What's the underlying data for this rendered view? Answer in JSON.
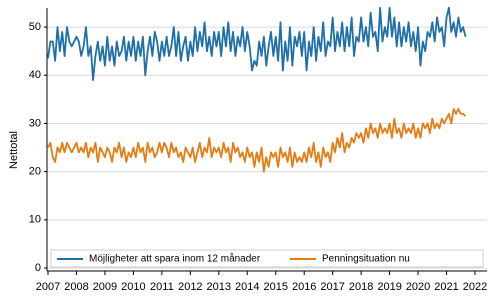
{
  "chart_data": {
    "type": "line",
    "y_label": "Nettotal",
    "x": [
      2007,
      2007.083,
      2007.167,
      2007.25,
      2007.333,
      2007.417,
      2007.5,
      2007.583,
      2007.667,
      2007.75,
      2007.833,
      2007.917,
      2008,
      2008.083,
      2008.167,
      2008.25,
      2008.333,
      2008.417,
      2008.5,
      2008.583,
      2008.667,
      2008.75,
      2008.833,
      2008.917,
      2009,
      2009.083,
      2009.167,
      2009.25,
      2009.333,
      2009.417,
      2009.5,
      2009.583,
      2009.667,
      2009.75,
      2009.833,
      2009.917,
      2010,
      2010.083,
      2010.167,
      2010.25,
      2010.333,
      2010.417,
      2010.5,
      2010.583,
      2010.667,
      2010.75,
      2010.833,
      2010.917,
      2011,
      2011.083,
      2011.167,
      2011.25,
      2011.333,
      2011.417,
      2011.5,
      2011.583,
      2011.667,
      2011.75,
      2011.833,
      2011.917,
      2012,
      2012.083,
      2012.167,
      2012.25,
      2012.333,
      2012.417,
      2012.5,
      2012.583,
      2012.667,
      2012.75,
      2012.833,
      2012.917,
      2013,
      2013.083,
      2013.167,
      2013.25,
      2013.333,
      2013.417,
      2013.5,
      2013.583,
      2013.667,
      2013.75,
      2013.833,
      2013.917,
      2014,
      2014.083,
      2014.167,
      2014.25,
      2014.333,
      2014.417,
      2014.5,
      2014.583,
      2014.667,
      2014.75,
      2014.833,
      2014.917,
      2015,
      2015.083,
      2015.167,
      2015.25,
      2015.333,
      2015.417,
      2015.5,
      2015.583,
      2015.667,
      2015.75,
      2015.833,
      2015.917,
      2016,
      2016.083,
      2016.167,
      2016.25,
      2016.333,
      2016.417,
      2016.5,
      2016.583,
      2016.667,
      2016.75,
      2016.833,
      2016.917,
      2017,
      2017.083,
      2017.167,
      2017.25,
      2017.333,
      2017.417,
      2017.5,
      2017.583,
      2017.667,
      2017.75,
      2017.833,
      2017.917,
      2018,
      2018.083,
      2018.167,
      2018.25,
      2018.333,
      2018.417,
      2018.5,
      2018.583,
      2018.667,
      2018.75,
      2018.833,
      2018.917,
      2019,
      2019.083,
      2019.167,
      2019.25,
      2019.333,
      2019.417,
      2019.5,
      2019.583,
      2019.667,
      2019.75,
      2019.833,
      2019.917,
      2020,
      2020.083,
      2020.167,
      2020.25,
      2020.333,
      2020.417,
      2020.5,
      2020.583,
      2020.667,
      2020.75,
      2020.833,
      2020.917,
      2021,
      2021.083,
      2021.167,
      2021.25,
      2021.333,
      2021.417,
      2021.5,
      2021.583,
      2021.667
    ],
    "series": [
      {
        "name": "Möjligheter att spara inom 12 månader",
        "color": "#1f6fa8",
        "values": [
          43.5,
          47,
          47,
          43,
          50,
          45,
          49,
          44,
          50,
          47,
          46,
          47,
          48,
          47,
          44,
          46,
          50,
          44,
          46,
          39,
          44,
          47,
          43,
          46,
          42,
          48,
          43,
          46,
          42,
          47,
          44,
          45,
          48,
          43,
          47,
          44,
          48,
          43,
          47,
          44,
          48,
          40,
          45,
          48,
          44,
          49,
          47,
          43,
          47,
          44,
          48,
          44,
          46,
          50,
          44,
          49,
          43,
          46,
          48,
          43,
          47,
          44,
          50,
          45,
          49,
          46,
          51,
          45,
          48,
          44,
          49,
          46,
          49,
          44,
          50,
          46,
          51,
          45,
          49,
          44,
          48,
          46,
          50,
          45,
          49,
          46,
          41,
          43,
          42,
          47,
          44,
          48,
          42,
          46,
          49,
          44,
          48,
          43,
          51,
          41,
          47,
          43,
          50,
          42,
          48,
          46,
          49,
          44,
          49,
          41,
          47,
          44,
          50,
          43,
          48,
          45,
          51,
          44,
          47,
          46,
          52,
          45,
          49,
          46,
          51,
          45,
          50,
          46,
          52,
          44,
          48,
          47,
          52,
          47,
          50,
          46,
          53,
          48,
          49,
          45,
          54,
          47,
          50,
          48,
          54,
          48,
          52,
          46,
          51,
          46,
          50,
          47,
          51,
          46,
          49,
          45,
          50,
          42,
          47,
          45,
          49,
          48,
          51,
          47,
          52,
          49,
          50,
          46,
          52,
          54,
          49,
          51,
          48,
          52,
          49,
          50,
          48
        ]
      },
      {
        "name": "Penningsituation nu",
        "color": "#e57c14",
        "values": [
          25,
          26,
          23,
          22,
          25,
          24,
          26,
          24,
          26,
          25,
          24,
          25,
          26,
          24,
          25,
          24,
          26,
          23,
          25,
          24,
          26,
          22,
          25,
          24,
          23,
          25,
          24,
          22,
          25,
          24,
          26,
          23,
          25,
          22,
          24,
          23,
          25,
          23,
          26,
          24,
          25,
          22,
          26,
          24,
          25,
          23,
          24,
          26,
          24,
          26,
          25,
          23,
          26,
          24,
          25,
          23,
          24,
          22,
          25,
          24,
          23,
          25,
          22,
          24,
          26,
          23,
          25,
          24,
          27,
          23,
          25,
          24,
          25,
          23,
          26,
          24,
          25,
          22,
          26,
          24,
          25,
          23,
          24,
          22,
          25,
          23,
          24,
          21,
          24,
          22,
          25,
          20,
          23,
          21,
          24,
          23,
          24,
          21,
          25,
          23,
          24,
          22,
          25,
          21,
          24,
          22,
          23,
          22,
          24,
          22,
          25,
          23,
          26,
          22,
          24,
          21,
          25,
          23,
          24,
          22,
          26,
          24,
          27,
          25,
          28,
          24,
          26,
          25,
          27,
          26,
          28,
          27,
          28,
          26,
          29,
          27,
          30,
          28,
          29,
          27,
          30,
          28,
          29,
          28,
          30,
          27,
          31,
          28,
          29,
          27,
          30,
          28,
          29,
          28,
          30,
          27,
          29,
          27,
          30,
          29,
          30,
          28,
          31,
          29,
          30,
          29,
          31,
          30,
          31,
          32,
          30,
          33,
          32,
          33,
          32,
          32,
          31.5
        ]
      }
    ],
    "xlim": [
      2007,
      2022
    ],
    "xticks": [
      2007,
      2008,
      2009,
      2010,
      2011,
      2012,
      2013,
      2014,
      2015,
      2016,
      2017,
      2018,
      2019,
      2020,
      2021,
      2022
    ],
    "ylim": [
      0,
      55
    ],
    "yticks": [
      0,
      10,
      20,
      30,
      40,
      50
    ],
    "grid": true,
    "legend": "bottom"
  }
}
